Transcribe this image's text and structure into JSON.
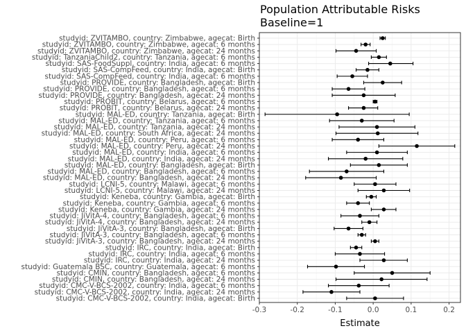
{
  "chart_data": {
    "type": "scatter",
    "title": "Population Attributable Risks",
    "subtitle": "Baseline=1",
    "xlabel": "Estimate",
    "ylabel": "",
    "xlim": [
      -0.3,
      0.23
    ],
    "xticks": [
      -0.3,
      -0.2,
      -0.1,
      0.0,
      0.1,
      0.2
    ],
    "xtick_labels": [
      "-0.3",
      "-0.2",
      "-0.1",
      "0.0",
      "0.1",
      "0.2"
    ],
    "grid": true,
    "colors": {
      "point": "#000000",
      "grid": "#ebebeb",
      "panel_border": "#333333"
    },
    "points": [
      {
        "label": "studyid: ZVITAMBO, country: Zimbabwe, agecat: Birth",
        "estimate": 0.025,
        "lower": 0.018,
        "upper": 0.032
      },
      {
        "label": "studyid: ZVITAMBO, country: Zimbabwe, agecat: 6 months",
        "estimate": -0.02,
        "lower": -0.032,
        "upper": -0.008
      },
      {
        "label": "studyid: ZVITAMBO, country: Zimbabwe, agecat: 24 months",
        "estimate": -0.045,
        "lower": -0.098,
        "upper": 0.008
      },
      {
        "label": "studyid: TanzaniaChild2, country: Tanzania, agecat: 6 months",
        "estimate": 0.015,
        "lower": -0.005,
        "upper": 0.035
      },
      {
        "label": "studyid: SAS-FoodSuppl, country: India, agecat: 6 months",
        "estimate": 0.045,
        "lower": -0.012,
        "upper": 0.105
      },
      {
        "label": "studyid: SAS-CompFeed, country: India, agecat: Birth",
        "estimate": -0.015,
        "lower": -0.045,
        "upper": 0.015
      },
      {
        "label": "studyid: SAS-CompFeed, country: India, agecat: 6 months",
        "estimate": -0.055,
        "lower": -0.095,
        "upper": -0.015
      },
      {
        "label": "studyid: PROVIDE, country: Bangladesh, agecat: Birth",
        "estimate": 0.025,
        "lower": -0.025,
        "upper": 0.075
      },
      {
        "label": "studyid: PROVIDE, country: Bangladesh, agecat: 6 months",
        "estimate": -0.065,
        "lower": -0.108,
        "upper": -0.022
      },
      {
        "label": "studyid: PROVIDE, country: Bangladesh, agecat: 24 months",
        "estimate": -0.025,
        "lower": -0.108,
        "upper": 0.058
      },
      {
        "label": "studyid: PROBIT, country: Belarus, agecat: 6 months",
        "estimate": 0.005,
        "lower": 0.0,
        "upper": 0.01
      },
      {
        "label": "studyid: PROBIT, country: Belarus, agecat: 24 months",
        "estimate": -0.025,
        "lower": -0.065,
        "upper": 0.012
      },
      {
        "label": "studyid: MAL-ED, country: Tanzania, agecat: Birth",
        "estimate": -0.095,
        "lower": -0.285,
        "upper": 0.095
      },
      {
        "label": "studyid: MAL-ED, country: Tanzania, agecat: 6 months",
        "estimate": -0.03,
        "lower": -0.115,
        "upper": 0.055
      },
      {
        "label": "studyid: MAL-ED, country: Tanzania, agecat: 24 months",
        "estimate": 0.01,
        "lower": -0.09,
        "upper": 0.11
      },
      {
        "label": "studyid: MAL-ED, country: South Africa, agecat: 24 months",
        "estimate": 0.012,
        "lower": -0.098,
        "upper": 0.118
      },
      {
        "label": "studyid: MAL-ED, country: Peru, agecat: 6 months",
        "estimate": -0.04,
        "lower": -0.108,
        "upper": 0.028
      },
      {
        "label": "studyid: MAL-ED, country: Peru, agecat: 24 months",
        "estimate": 0.115,
        "lower": 0.015,
        "upper": 0.215
      },
      {
        "label": "studyid: MAL-ED, country: India, agecat: 6 months",
        "estimate": 0.01,
        "lower": -0.07,
        "upper": 0.09
      },
      {
        "label": "studyid: MAL-ED, country: India, agecat: 24 months",
        "estimate": -0.02,
        "lower": -0.118,
        "upper": 0.078
      },
      {
        "label": "studyid: MAL-ED, country: Bangladesh, agecat: Birth",
        "estimate": 0.015,
        "lower": -0.06,
        "upper": 0.09
      },
      {
        "label": "studyid: MAL-ED, country: Bangladesh, agecat: 6 months",
        "estimate": -0.07,
        "lower": -0.168,
        "upper": 0.028
      },
      {
        "label": "studyid: MAL-ED, country: Bangladesh, agecat: 24 months",
        "estimate": -0.085,
        "lower": -0.178,
        "upper": 0.008
      },
      {
        "label": "studyid: LCNI-5, country: Malawi, agecat: 6 months",
        "estimate": 0.005,
        "lower": -0.05,
        "upper": 0.06
      },
      {
        "label": "studyid: LCNI-5, country: Malawi, agecat: 24 months",
        "estimate": 0.028,
        "lower": -0.04,
        "upper": 0.096
      },
      {
        "label": "studyid: Keneba, country: Gambia, agecat: Birth",
        "estimate": -0.005,
        "lower": -0.018,
        "upper": 0.008
      },
      {
        "label": "studyid: Keneba, country: Gambia, agecat: 6 months",
        "estimate": -0.04,
        "lower": -0.07,
        "upper": -0.01
      },
      {
        "label": "studyid: Keneba, country: Gambia, agecat: 24 months",
        "estimate": 0.028,
        "lower": -0.005,
        "upper": 0.06
      },
      {
        "label": "studyid: JiVitA-4, country: Bangladesh, agecat: 6 months",
        "estimate": -0.035,
        "lower": -0.085,
        "upper": 0.015
      },
      {
        "label": "studyid: JiVitA-4, country: Bangladesh, agecat: 24 months",
        "estimate": -0.01,
        "lower": -0.03,
        "upper": 0.01
      },
      {
        "label": "studyid: JiVitA-3, country: Bangladesh, agecat: Birth",
        "estimate": -0.065,
        "lower": -0.103,
        "upper": -0.027
      },
      {
        "label": "studyid: JiVitA-3, country: Bangladesh, agecat: 6 months",
        "estimate": -0.03,
        "lower": -0.04,
        "upper": -0.02
      },
      {
        "label": "studyid: JiVitA-3, country: Bangladesh, agecat: 24 months",
        "estimate": 0.005,
        "lower": -0.005,
        "upper": 0.015
      },
      {
        "label": "studyid: IRC, country: India, agecat: Birth",
        "estimate": -0.045,
        "lower": -0.06,
        "upper": -0.03
      },
      {
        "label": "studyid: IRC, country: India, agecat: 6 months",
        "estimate": -0.035,
        "lower": -0.1,
        "upper": 0.03
      },
      {
        "label": "studyid: IRC, country: India, agecat: 24 months",
        "estimate": 0.028,
        "lower": -0.035,
        "upper": 0.09
      },
      {
        "label": "studyid: Guatemala BSC, country: Guatemala, agecat: 6 months",
        "estimate": -0.098,
        "lower": -0.173,
        "upper": -0.023
      },
      {
        "label": "studyid: CMIN, country: Bangladesh, agecat: 6 months",
        "estimate": 0.05,
        "lower": -0.05,
        "upper": 0.15
      },
      {
        "label": "studyid: CMIN, country: Bangladesh, agecat: 24 months",
        "estimate": 0.022,
        "lower": -0.098,
        "upper": 0.142
      },
      {
        "label": "studyid: CMC-V-BCS-2002, country: India, agecat: 6 months",
        "estimate": -0.038,
        "lower": -0.118,
        "upper": 0.042
      },
      {
        "label": "studyid: CMC-V-BCS-2002, country: India, agecat: 24 months",
        "estimate": -0.11,
        "lower": -0.185,
        "upper": -0.035
      },
      {
        "label": "studyid: CMC-V-BCS-2002, country: India, agecat: Birth",
        "estimate": 0.005,
        "lower": -0.07,
        "upper": 0.08
      }
    ]
  }
}
